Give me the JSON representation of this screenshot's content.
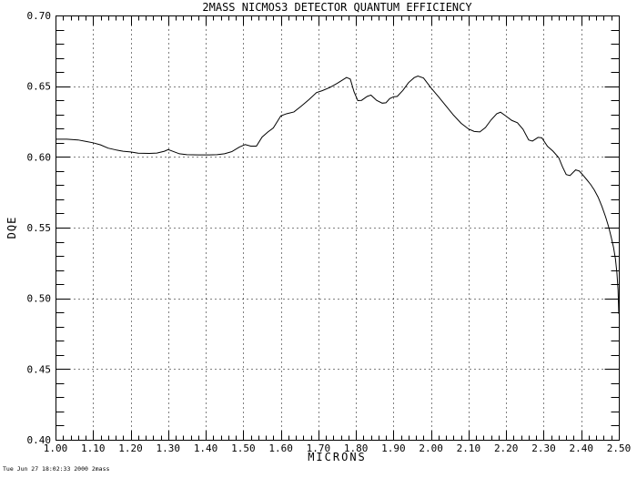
{
  "page": {
    "background": "#ffffff",
    "foreground": "#000000"
  },
  "chart_data": {
    "type": "line",
    "title": "2MASS NICMOS3 DETECTOR QUANTUM EFFICIENCY",
    "xlabel": "MICRONS",
    "ylabel": "DQE",
    "xlim": [
      1.0,
      2.5
    ],
    "ylim": [
      0.4,
      0.7
    ],
    "x_tick_labels": [
      "1.00",
      "1.10",
      "1.20",
      "1.30",
      "1.40",
      "1.50",
      "1.60",
      "1.70",
      "1.80",
      "1.90",
      "2.00",
      "2.10",
      "2.20",
      "2.30",
      "2.40",
      "2.50"
    ],
    "y_tick_labels": [
      "0.40",
      "0.45",
      "0.50",
      "0.55",
      "0.60",
      "0.65",
      "0.70"
    ],
    "x_minor_step": 0.02,
    "y_minor_step": 0.01,
    "grid": {
      "style": "dotted",
      "at_major_ticks": true
    },
    "legend": "none",
    "line_color": "#000000",
    "series": [
      {
        "name": "detector-quantum-efficiency",
        "points": [
          [
            1.0,
            0.6125
          ],
          [
            1.03,
            0.6125
          ],
          [
            1.06,
            0.612
          ],
          [
            1.08,
            0.611
          ],
          [
            1.1,
            0.61
          ],
          [
            1.12,
            0.6085
          ],
          [
            1.14,
            0.6062
          ],
          [
            1.16,
            0.605
          ],
          [
            1.18,
            0.604
          ],
          [
            1.2,
            0.6035
          ],
          [
            1.22,
            0.6026
          ],
          [
            1.25,
            0.6025
          ],
          [
            1.27,
            0.6027
          ],
          [
            1.29,
            0.604
          ],
          [
            1.3,
            0.6052
          ],
          [
            1.31,
            0.6042
          ],
          [
            1.33,
            0.6022
          ],
          [
            1.35,
            0.6016
          ],
          [
            1.38,
            0.6014
          ],
          [
            1.41,
            0.6014
          ],
          [
            1.43,
            0.6016
          ],
          [
            1.45,
            0.6022
          ],
          [
            1.47,
            0.6038
          ],
          [
            1.49,
            0.607
          ],
          [
            1.505,
            0.6087
          ],
          [
            1.52,
            0.6076
          ],
          [
            1.535,
            0.6076
          ],
          [
            1.55,
            0.614
          ],
          [
            1.565,
            0.6175
          ],
          [
            1.58,
            0.6205
          ],
          [
            1.6,
            0.629
          ],
          [
            1.615,
            0.6305
          ],
          [
            1.635,
            0.6318
          ],
          [
            1.655,
            0.636
          ],
          [
            1.675,
            0.6405
          ],
          [
            1.695,
            0.6455
          ],
          [
            1.71,
            0.6468
          ],
          [
            1.73,
            0.649
          ],
          [
            1.75,
            0.652
          ],
          [
            1.765,
            0.6545
          ],
          [
            1.775,
            0.6562
          ],
          [
            1.785,
            0.655
          ],
          [
            1.795,
            0.646
          ],
          [
            1.805,
            0.6398
          ],
          [
            1.815,
            0.64
          ],
          [
            1.83,
            0.6428
          ],
          [
            1.84,
            0.6437
          ],
          [
            1.855,
            0.64
          ],
          [
            1.87,
            0.638
          ],
          [
            1.88,
            0.6383
          ],
          [
            1.89,
            0.6412
          ],
          [
            1.9,
            0.6425
          ],
          [
            1.91,
            0.6428
          ],
          [
            1.925,
            0.647
          ],
          [
            1.94,
            0.6525
          ],
          [
            1.955,
            0.656
          ],
          [
            1.965,
            0.6572
          ],
          [
            1.98,
            0.6558
          ],
          [
            2.0,
            0.6488
          ],
          [
            2.02,
            0.6425
          ],
          [
            2.04,
            0.636
          ],
          [
            2.06,
            0.6295
          ],
          [
            2.08,
            0.6238
          ],
          [
            2.1,
            0.6197
          ],
          [
            2.115,
            0.618
          ],
          [
            2.13,
            0.6177
          ],
          [
            2.145,
            0.6208
          ],
          [
            2.16,
            0.6262
          ],
          [
            2.175,
            0.6305
          ],
          [
            2.185,
            0.6316
          ],
          [
            2.2,
            0.6288
          ],
          [
            2.215,
            0.6258
          ],
          [
            2.23,
            0.6242
          ],
          [
            2.245,
            0.6195
          ],
          [
            2.26,
            0.612
          ],
          [
            2.27,
            0.6112
          ],
          [
            2.285,
            0.6138
          ],
          [
            2.295,
            0.6135
          ],
          [
            2.31,
            0.6075
          ],
          [
            2.325,
            0.604
          ],
          [
            2.34,
            0.5995
          ],
          [
            2.35,
            0.593
          ],
          [
            2.36,
            0.5875
          ],
          [
            2.37,
            0.5868
          ],
          [
            2.385,
            0.5908
          ],
          [
            2.395,
            0.59
          ],
          [
            2.405,
            0.587
          ],
          [
            2.415,
            0.5838
          ],
          [
            2.425,
            0.5805
          ],
          [
            2.435,
            0.5765
          ],
          [
            2.445,
            0.5715
          ],
          [
            2.455,
            0.565
          ],
          [
            2.465,
            0.5575
          ],
          [
            2.473,
            0.5505
          ],
          [
            2.48,
            0.543
          ],
          [
            2.486,
            0.536
          ],
          [
            2.491,
            0.528
          ],
          [
            2.495,
            0.518
          ],
          [
            2.498,
            0.506
          ],
          [
            2.5,
            0.489
          ]
        ]
      }
    ]
  },
  "footer": {
    "timestamp": "Tue Jun 27 18:02:33 2000 2mass"
  }
}
